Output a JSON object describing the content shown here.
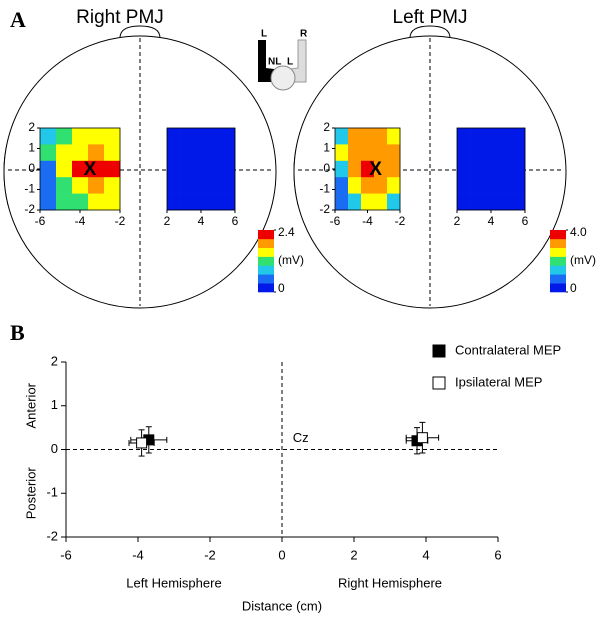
{
  "panel_labels": [
    "A",
    "B"
  ],
  "icon_labels": [
    "L",
    "R",
    "NL",
    "L"
  ],
  "chart_data": [
    {
      "type": "heatmap",
      "title": "Right PMJ",
      "colors": [
        "#0018e8",
        "#1a6cf2",
        "#22c8ea",
        "#30e070",
        "#ffff00",
        "#ff9a00",
        "#ee0000"
      ],
      "marker": {
        "label": "X",
        "x": -3.5,
        "y": 0
      },
      "colorbar": {
        "lim": [
          0,
          2.4
        ],
        "ticks": [
          0,
          2.4
        ],
        "unit": "(mV)"
      },
      "maps": [
        {
          "xlim": [
            -6,
            -2
          ],
          "ylim": [
            -2,
            2
          ],
          "xticks": [
            -6,
            -4,
            -2
          ],
          "yticks": [
            -2,
            -1,
            0,
            1,
            2
          ],
          "values": [
            [
              0.8,
              1.1,
              1.6,
              1.6,
              1.6
            ],
            [
              1.1,
              1.4,
              1.6,
              2.0,
              1.6
            ],
            [
              0.6,
              1.4,
              2.2,
              2.4,
              2.2
            ],
            [
              0.6,
              1.1,
              1.6,
              2.0,
              1.6
            ],
            [
              0.6,
              1.1,
              1.1,
              1.6,
              1.6
            ]
          ]
        },
        {
          "xlim": [
            2,
            6
          ],
          "ylim": [
            -2,
            2
          ],
          "xticks": [
            2,
            4,
            6
          ],
          "values": [
            [
              0,
              0,
              0,
              0,
              0
            ],
            [
              0,
              0,
              0,
              0,
              0
            ],
            [
              0,
              0,
              0,
              0,
              0
            ],
            [
              0,
              0,
              0,
              0,
              0
            ],
            [
              0,
              0,
              0,
              0,
              0
            ]
          ]
        }
      ]
    },
    {
      "type": "heatmap",
      "title": "Left PMJ",
      "colors": [
        "#0018e8",
        "#1a6cf2",
        "#22c8ea",
        "#30e070",
        "#ffff00",
        "#ff9a00",
        "#ee0000"
      ],
      "marker": {
        "label": "X",
        "x": -3.5,
        "y": 0
      },
      "colorbar": {
        "lim": [
          0,
          4
        ],
        "ticks": [
          0,
          {
            "value": 4,
            "label": "4.0"
          }
        ],
        "unit": "(mV)"
      },
      "maps": [
        {
          "xlim": [
            -6,
            -2
          ],
          "ylim": [
            -2,
            2
          ],
          "xticks": [
            -6,
            -4,
            -2
          ],
          "yticks": [
            -2,
            -1,
            0,
            1,
            2
          ],
          "values": [
            [
              1.7,
              2.9,
              2.9,
              2.9,
              2.3
            ],
            [
              2.3,
              2.9,
              3.4,
              3.4,
              2.9
            ],
            [
              1.7,
              2.9,
              4.0,
              3.4,
              2.9
            ],
            [
              1.1,
              2.3,
              2.9,
              2.9,
              2.3
            ],
            [
              0.6,
              1.7,
              2.3,
              2.3,
              1.7
            ]
          ]
        },
        {
          "xlim": [
            2,
            6
          ],
          "ylim": [
            -2,
            2
          ],
          "xticks": [
            2,
            4,
            6
          ],
          "values": [
            [
              0,
              0,
              0,
              0,
              0
            ],
            [
              0,
              0,
              0,
              0,
              0
            ],
            [
              0,
              0,
              0,
              0,
              0
            ],
            [
              0,
              0,
              0,
              0,
              0
            ],
            [
              0,
              0,
              0,
              0,
              0
            ]
          ]
        }
      ]
    },
    {
      "type": "scatter",
      "xlabel": "Distance (cm)",
      "xlim": [
        -6,
        6
      ],
      "ylim": [
        -2,
        2
      ],
      "xticks": [
        -6,
        -4,
        -2,
        0,
        2,
        4,
        6
      ],
      "yticks": [
        -2,
        -1,
        0,
        1,
        2
      ],
      "y_region_labels": [
        "Anterior",
        "Posterior"
      ],
      "x_region_labels": [
        "Left Hemisphere",
        "Right Hemisphere"
      ],
      "annotations": [
        {
          "text": "Cz",
          "x": 0.3,
          "y": 0.25
        }
      ],
      "series": [
        {
          "name": "Contralateral MEP",
          "color": "#000000",
          "x": [
            -3.7,
            3.75
          ],
          "values": [
            0.22,
            0.2
          ],
          "xerr": [
            0.5,
            0.3
          ],
          "yerr": [
            0.3,
            0.3
          ]
        },
        {
          "name": "Ipsilateral MEP",
          "color": "#ffffff",
          "x": [
            -3.9,
            3.9
          ],
          "values": [
            0.15,
            0.27
          ],
          "xerr": [
            0.35,
            0.45
          ],
          "yerr": [
            0.3,
            0.35
          ]
        }
      ]
    }
  ]
}
